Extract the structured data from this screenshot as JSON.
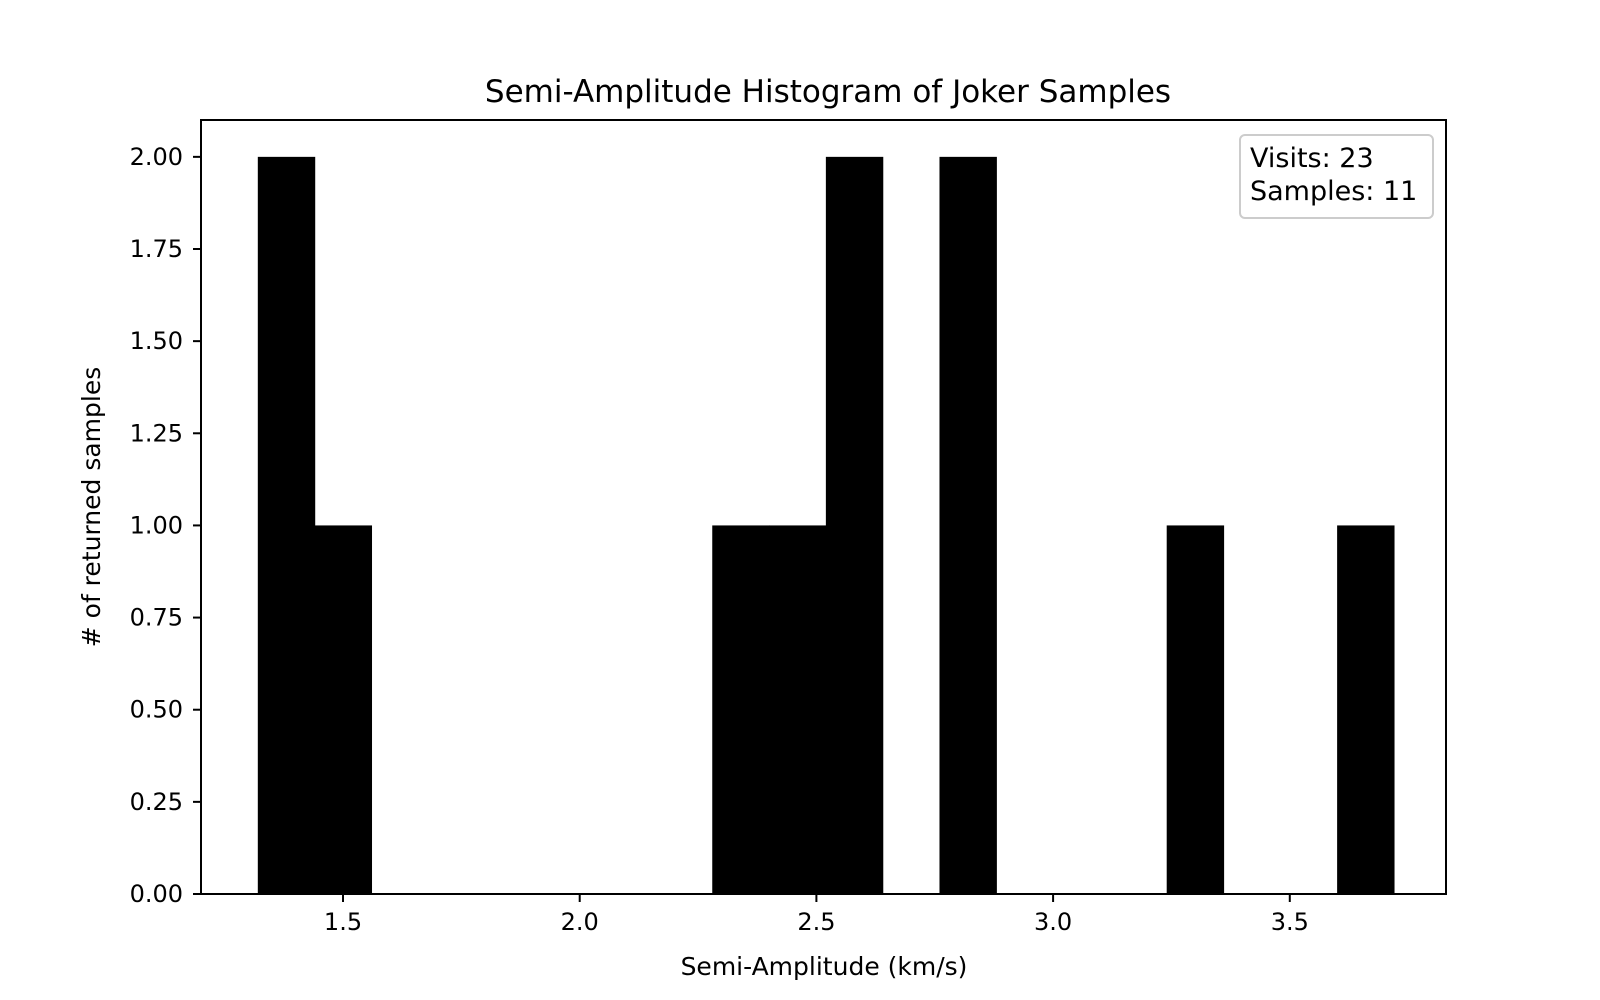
{
  "chart_data": {
    "type": "bar",
    "title": "Semi-Amplitude Histogram of Joker Samples",
    "xlabel": "Semi-Amplitude (km/s)",
    "ylabel": "# of returned samples",
    "xlim": [
      1.2,
      3.83
    ],
    "ylim": [
      0,
      2.1
    ],
    "x_ticks": [
      "1.5",
      "2.0",
      "2.5",
      "3.0",
      "3.5"
    ],
    "y_ticks": [
      "0.00",
      "0.25",
      "0.50",
      "0.75",
      "1.00",
      "1.25",
      "1.50",
      "1.75",
      "2.00"
    ],
    "bins": [
      {
        "x0": 1.32,
        "x1": 1.44,
        "count": 2
      },
      {
        "x0": 1.44,
        "x1": 1.56,
        "count": 1
      },
      {
        "x0": 2.28,
        "x1": 2.4,
        "count": 1
      },
      {
        "x0": 2.4,
        "x1": 2.52,
        "count": 1
      },
      {
        "x0": 2.52,
        "x1": 2.64,
        "count": 2
      },
      {
        "x0": 2.76,
        "x1": 2.88,
        "count": 2
      },
      {
        "x0": 3.24,
        "x1": 3.36,
        "count": 1
      },
      {
        "x0": 3.6,
        "x1": 3.72,
        "count": 1
      }
    ],
    "bar_color": "#000000",
    "grid": false,
    "legend": {
      "placement": "top-right",
      "lines": [
        "Visits: 23",
        "Samples: 11"
      ]
    }
  }
}
